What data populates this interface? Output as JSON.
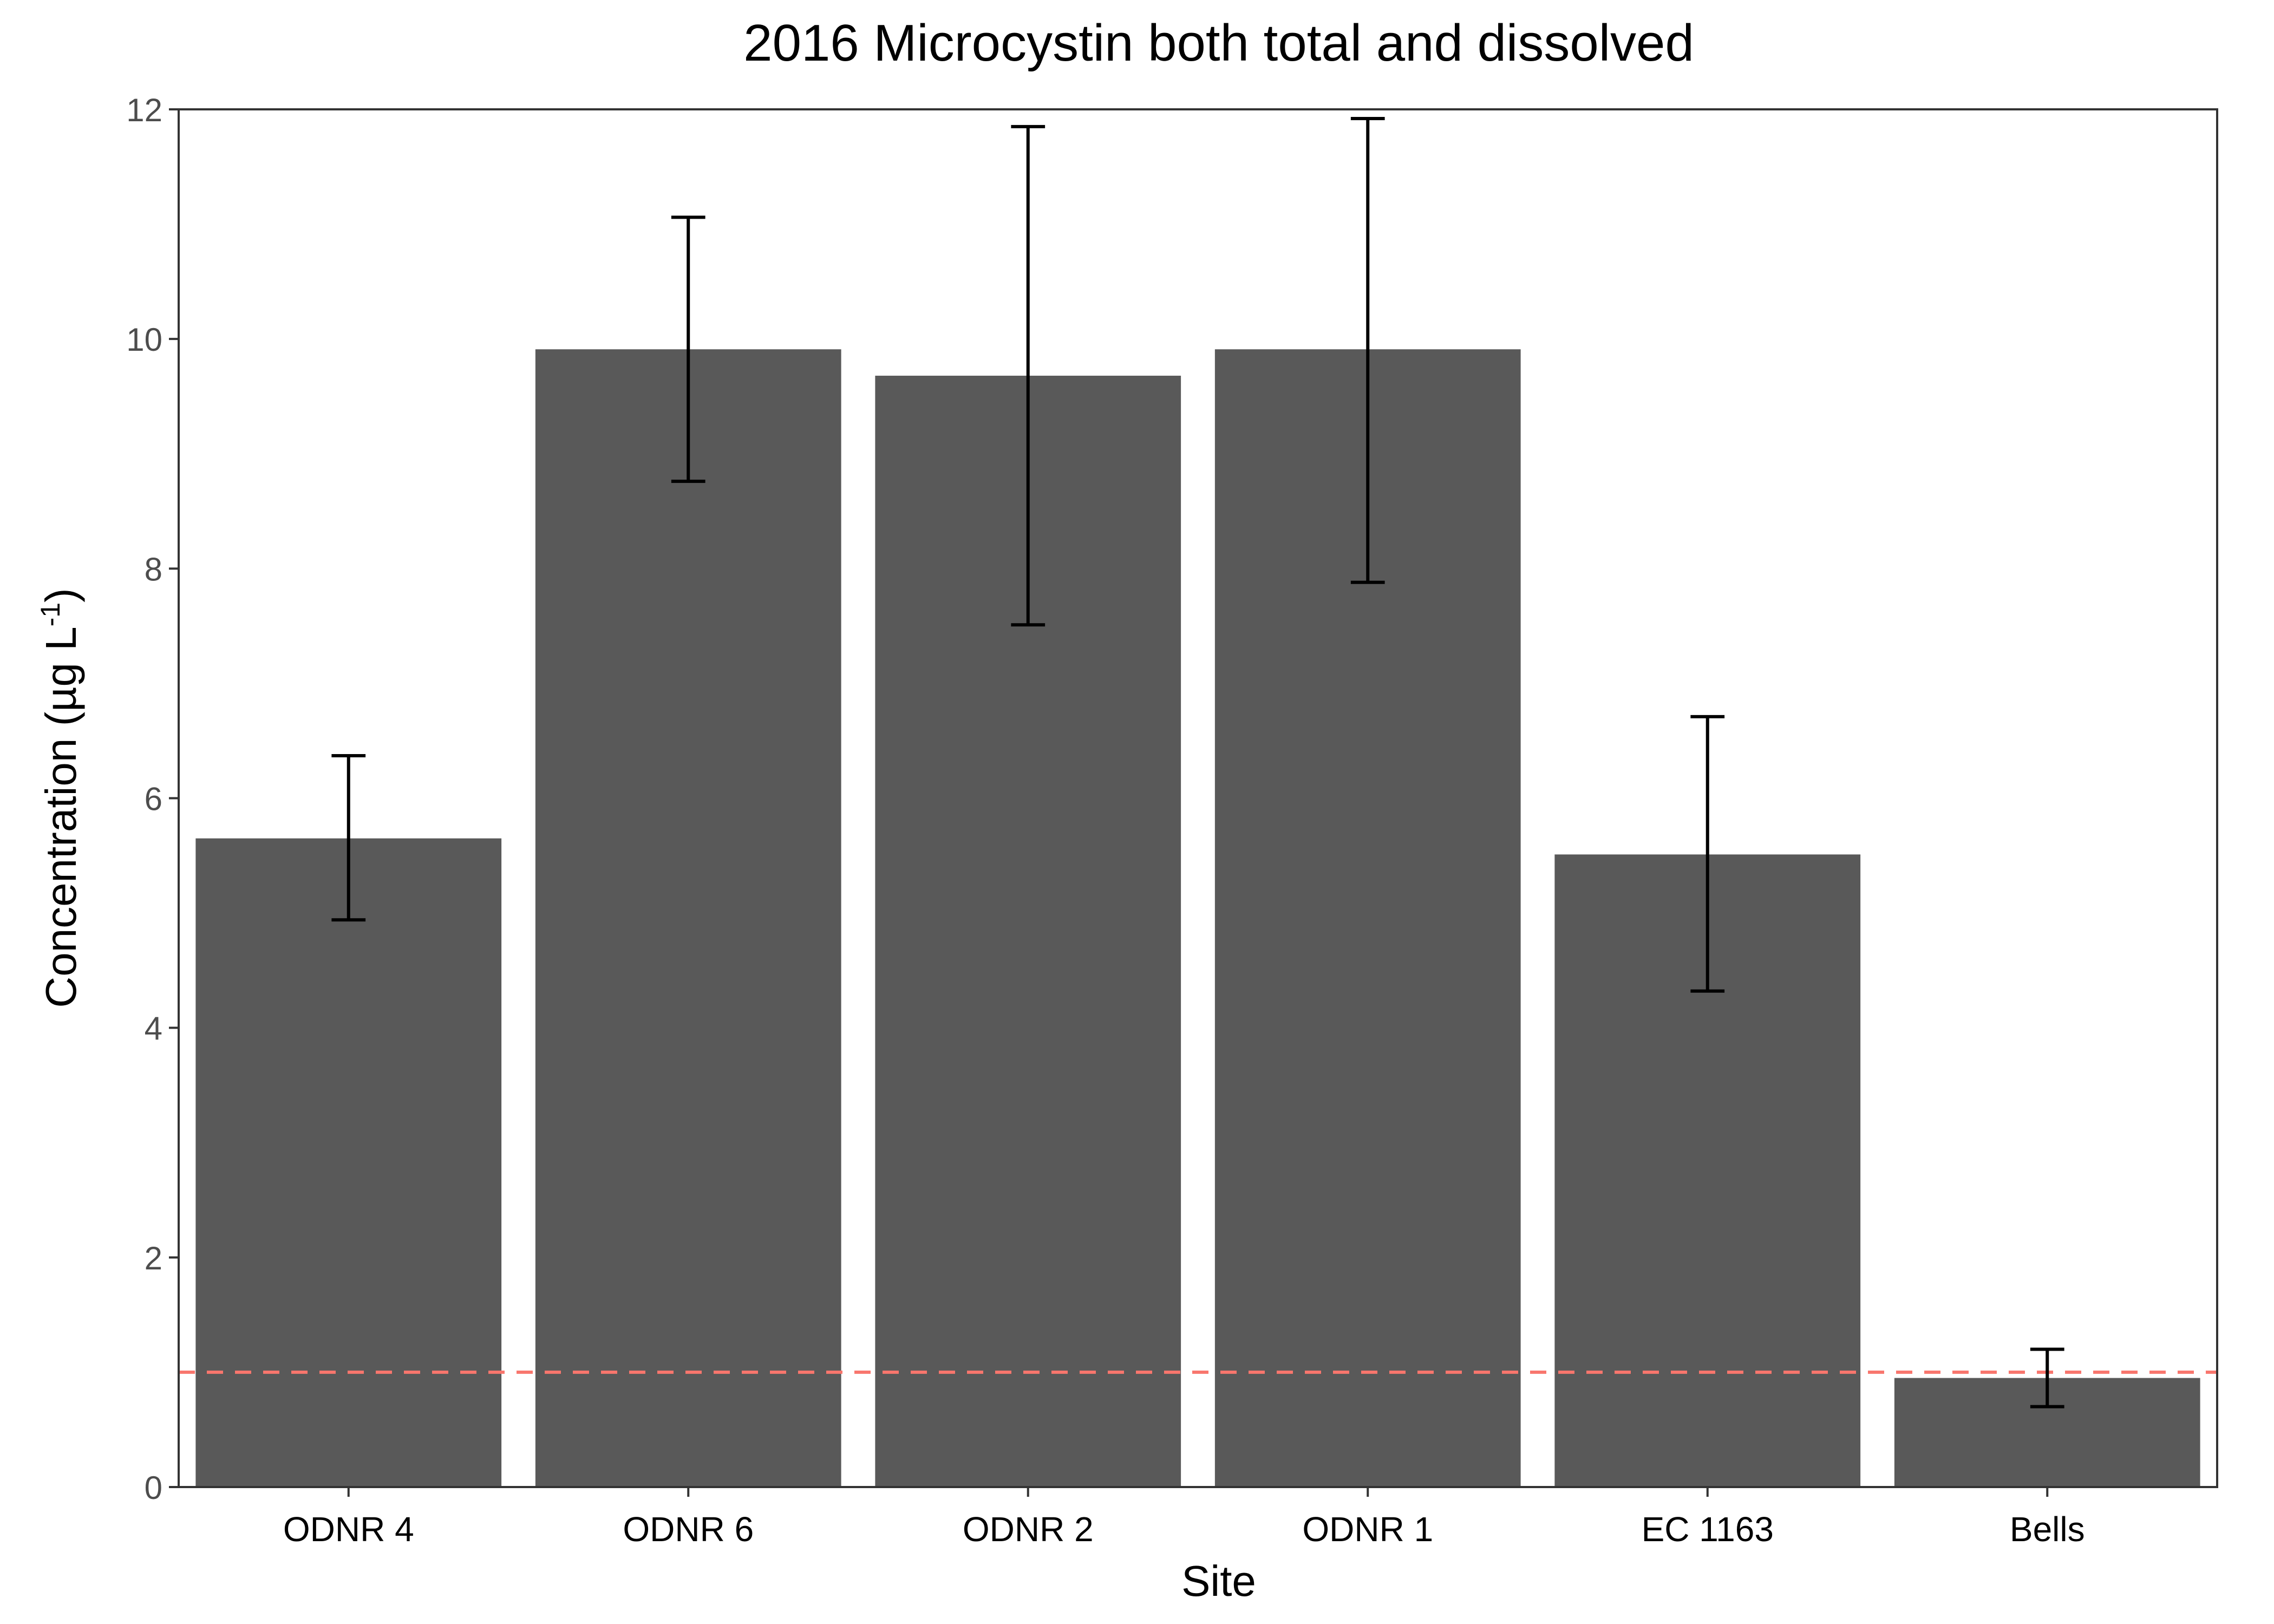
{
  "chart_data": {
    "type": "bar",
    "title": "2016 Microcystin both total and dissolved",
    "xlabel": "Site",
    "ylabel": "Concentration (µg L",
    "ylabel_superscript": "-1",
    "ylabel_suffix": ")",
    "categories": [
      "ODNR 4",
      "ODNR 6",
      "ODNR 2",
      "ODNR 1",
      "EC 1163",
      "Bells"
    ],
    "values": [
      5.65,
      9.91,
      9.68,
      9.91,
      5.51,
      0.95
    ],
    "error_low": [
      4.94,
      8.76,
      7.51,
      7.88,
      4.32,
      0.7
    ],
    "error_high": [
      6.37,
      11.06,
      11.85,
      11.92,
      6.71,
      1.2
    ],
    "ylim": [
      0,
      12
    ],
    "yticks": [
      0,
      2,
      4,
      6,
      8,
      10,
      12
    ],
    "reference_line": {
      "value": 1.0,
      "style": "dashed",
      "color": "#F8766D"
    },
    "bar_color": "#595959",
    "grid": false,
    "legend": "none"
  }
}
